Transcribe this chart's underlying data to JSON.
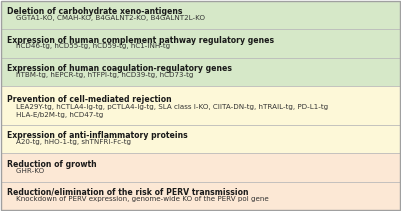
{
  "rows": [
    {
      "header": "Deletion of carbohydrate xeno-antigens",
      "content": "    GGTA1-KO, CMAH-KO, B4GALNT2-KO, B4GALNT2L-KO",
      "bg_color": "#d6e8c8",
      "content_lines": 1
    },
    {
      "header": "Expression of human complement pathway regulatory genes",
      "content": "    hCD46-tg, hCD55-tg, hCD59-tg, hC1-INH-tg",
      "bg_color": "#d6e8c8",
      "content_lines": 1
    },
    {
      "header": "Expression of human coagulation-regulatory genes",
      "content": "    hTBM-tg, hEPCR-tg, hTFPI-tg, hCD39-tg, hCD73-tg",
      "bg_color": "#d6e8c8",
      "content_lines": 1
    },
    {
      "header": "Prevention of cell-mediated rejection",
      "content": "    LEA29Y-tg, hCTLA4-Ig-tg, pCTLA4-Ig-tg, SLA class I-KO, CIITA-DN-tg, hTRAIL-tg, PD-L1-tg\n    HLA-E/b2M-tg, hCD47-tg",
      "bg_color": "#fdf8d8",
      "content_lines": 2
    },
    {
      "header": "Expression of anti-inflammatory proteins",
      "content": "    A20-tg, hHO-1-tg, shTNFRI-Fc-tg",
      "bg_color": "#fdf8d8",
      "content_lines": 1
    },
    {
      "header": "Reduction of growth",
      "content": "    GHR-KO",
      "bg_color": "#fce8d5",
      "content_lines": 1
    },
    {
      "header": "Reduction/elimination of the risk of PERV transmission",
      "content": "    Knockdown of PERV expression, genome-wide KO of the PERV pol gene",
      "bg_color": "#fce8d5",
      "content_lines": 1
    }
  ],
  "border_color": "#b8b8b8",
  "header_fontsize": 5.6,
  "content_fontsize": 5.1,
  "fig_bg": "#ffffff",
  "outer_border_color": "#a0a0a0"
}
